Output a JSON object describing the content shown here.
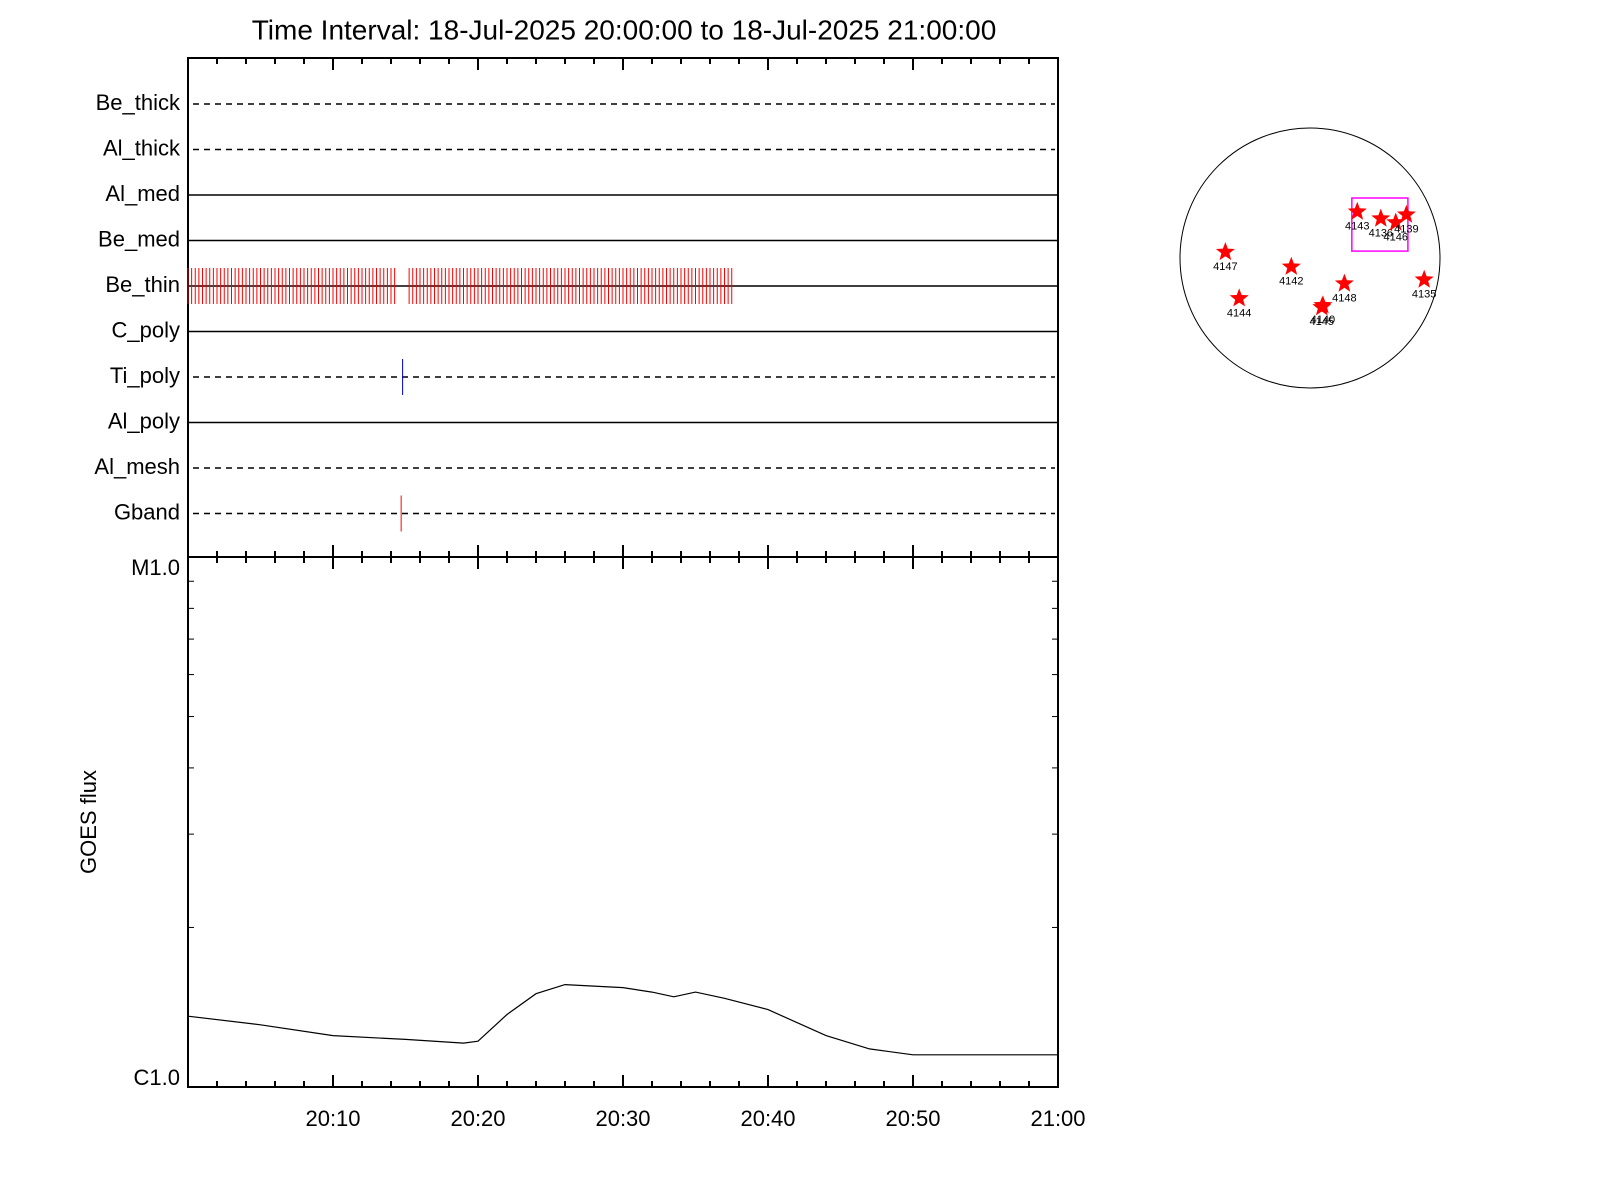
{
  "chart_data": [
    {
      "type": "timeline",
      "title": "Time Interval: 18-Jul-2025 20:00:00 to 18-Jul-2025 21:00:00",
      "categories": [
        "Be_thick",
        "Al_thick",
        "Al_med",
        "Be_med",
        "Be_thin",
        "C_poly",
        "Ti_poly",
        "Al_poly",
        "Al_mesh",
        "Gband"
      ],
      "line_styles": [
        "dashed",
        "dashed",
        "solid",
        "solid",
        "solid",
        "solid",
        "dashed",
        "solid",
        "dashed",
        "dashed"
      ],
      "observations": [
        [],
        [],
        [],
        [],
        [
          0,
          0.25,
          0.5,
          0.75,
          1,
          1.25,
          1.5,
          1.75,
          2,
          2.25,
          2.5,
          2.75,
          3,
          3.25,
          3.5,
          3.75,
          4,
          4.25,
          4.5,
          4.75,
          5,
          5.25,
          5.5,
          5.75,
          6,
          6.25,
          6.5,
          6.75,
          7,
          7.25,
          7.5,
          7.75,
          8,
          8.25,
          8.5,
          8.75,
          9,
          9.25,
          9.5,
          9.75,
          10,
          10.25,
          10.5,
          10.75,
          11,
          11.25,
          11.5,
          11.75,
          12,
          12.25,
          12.5,
          12.75,
          13,
          13.25,
          13.5,
          13.75,
          14,
          14.25,
          15.25,
          15.5,
          15.75,
          16,
          16.25,
          16.5,
          16.75,
          17,
          17.25,
          17.5,
          17.75,
          18,
          18.25,
          18.5,
          18.75,
          19,
          19.25,
          19.5,
          19.75,
          20,
          20.25,
          20.5,
          20.75,
          21,
          21.25,
          21.5,
          21.75,
          22,
          22.25,
          22.5,
          22.75,
          23,
          23.25,
          23.5,
          23.75,
          24,
          24.25,
          24.5,
          24.75,
          25,
          25.25,
          25.5,
          25.75,
          26,
          26.25,
          26.5,
          26.75,
          27,
          27.25,
          27.5,
          27.75,
          28,
          28.25,
          28.5,
          28.75,
          29,
          29.25,
          29.5,
          29.75,
          30,
          30.25,
          30.5,
          30.75,
          31,
          31.25,
          31.5,
          31.75,
          32,
          32.25,
          32.5,
          32.75,
          33,
          33.25,
          33.5,
          33.75,
          34,
          34.25,
          34.5,
          34.75,
          35,
          35.25,
          35.5,
          35.75,
          36,
          36.25,
          36.5,
          36.75,
          37,
          37.25,
          37.5
        ],
        [],
        [
          14.8
        ],
        [],
        [],
        [
          14.7
        ]
      ],
      "observation_colors": [
        null,
        null,
        null,
        null,
        "#ff0000",
        null,
        "#0000cc",
        null,
        null,
        "#ff0000"
      ],
      "xlim": [
        0,
        60
      ],
      "xticks": [
        10,
        20,
        30,
        40,
        50
      ],
      "xminorticks": [
        2,
        4,
        6,
        8,
        12,
        14,
        16,
        18,
        22,
        24,
        26,
        28,
        32,
        34,
        36,
        38,
        42,
        44,
        46,
        48,
        52,
        54,
        56,
        58
      ]
    },
    {
      "type": "line",
      "ylabel": "GOES flux",
      "x": [
        0,
        5,
        10,
        15,
        19,
        20,
        22,
        24,
        26,
        28,
        30,
        32,
        33.5,
        35,
        37,
        40,
        44,
        47,
        50,
        55,
        60
      ],
      "values": [
        1.36e-06,
        1.31e-06,
        1.25e-06,
        1.23e-06,
        1.21e-06,
        1.22e-06,
        1.37e-06,
        1.5e-06,
        1.56e-06,
        1.55e-06,
        1.54e-06,
        1.51e-06,
        1.48e-06,
        1.51e-06,
        1.47e-06,
        1.4e-06,
        1.25e-06,
        1.18e-06,
        1.15e-06,
        1.15e-06,
        1.15e-06
      ],
      "color": "#000000",
      "log_y": true,
      "ylim": [
        1e-06,
        1e-05
      ],
      "yticks": [
        {
          "value": 1e-06,
          "label": "C1.0"
        },
        {
          "value": 1e-05,
          "label": "M1.0"
        }
      ],
      "yminorticks": [
        2e-06,
        3e-06,
        4e-06,
        5e-06,
        6e-06,
        7e-06,
        8e-06,
        9e-06
      ],
      "xlim": [
        0,
        60
      ],
      "xticks": [
        {
          "value": 10,
          "label": "20:10"
        },
        {
          "value": 20,
          "label": "20:20"
        },
        {
          "value": 30,
          "label": "20:30"
        },
        {
          "value": 40,
          "label": "20:40"
        },
        {
          "value": 50,
          "label": "20:50"
        },
        {
          "value": 60,
          "label": "21:00"
        }
      ],
      "xminorticks": [
        2,
        4,
        6,
        8,
        12,
        14,
        16,
        18,
        22,
        24,
        26,
        28,
        32,
        34,
        36,
        38,
        42,
        44,
        46,
        48,
        52,
        54,
        56,
        58
      ]
    },
    {
      "type": "map",
      "marker_color": "#ff0000",
      "regions": [
        {
          "label": "4143",
          "x": 349,
          "y": 342
        },
        {
          "label": "4136",
          "x": 523,
          "y": 291
        },
        {
          "label": "4146",
          "x": 633,
          "y": 262
        },
        {
          "label": "4139",
          "x": 712,
          "y": 320
        },
        {
          "label": "4147",
          "x": -625,
          "y": 44
        },
        {
          "label": "4142",
          "x": -138,
          "y": -65
        },
        {
          "label": "4148",
          "x": 254,
          "y": -189
        },
        {
          "label": "4140",
          "x": 95,
          "y": -349
        },
        {
          "label": "4145",
          "x": 87,
          "y": -364
        },
        {
          "label": "4144",
          "x": -523,
          "y": -298
        },
        {
          "label": "4135",
          "x": 843,
          "y": -160
        }
      ],
      "fov": {
        "x": 516,
        "y": 247,
        "width": 414,
        "height": 392,
        "color": "#ff00ff"
      }
    }
  ]
}
